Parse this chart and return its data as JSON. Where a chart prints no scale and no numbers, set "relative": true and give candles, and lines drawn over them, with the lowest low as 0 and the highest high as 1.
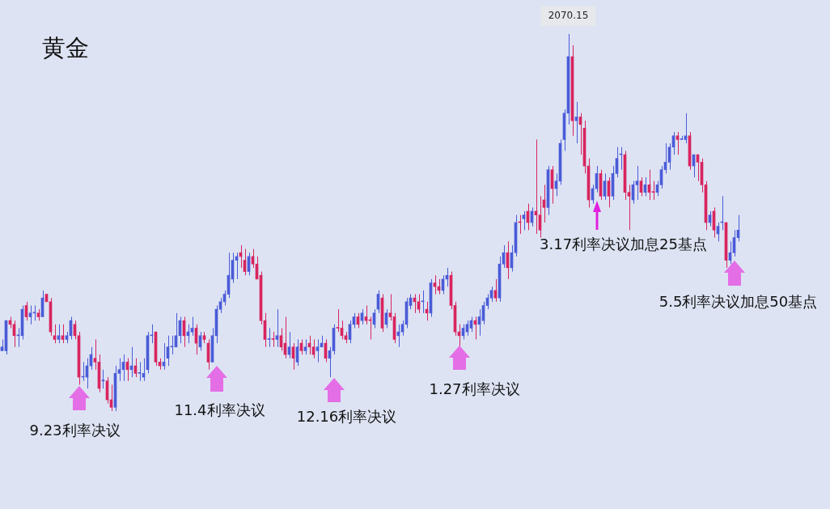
{
  "chart_data": {
    "type": "candlestick",
    "title": "黄金",
    "relative": true,
    "annotations": [
      {
        "text": "2070.15",
        "y": 1
      },
      "9.23利率决议",
      "11.4利率决议",
      "12.16利率决议",
      "1.27利率决议",
      "3.17利率决议加息25基点",
      "5.5利率决议加息50基点"
    ],
    "categories": [
      null,
      null,
      null,
      null,
      null,
      null,
      null,
      null,
      null,
      null,
      null,
      null,
      null,
      null,
      null,
      null,
      null,
      null,
      null,
      null,
      null,
      null,
      null,
      null,
      null,
      null,
      null,
      null,
      null,
      null,
      null,
      null,
      null,
      null,
      null,
      null,
      null,
      null,
      null,
      null,
      null,
      null,
      null,
      null,
      null,
      null,
      null,
      null,
      null,
      null,
      null,
      null,
      null,
      null,
      null,
      null,
      null,
      null,
      null,
      null,
      null,
      null,
      null,
      null,
      null,
      null,
      null,
      null,
      null,
      null,
      null,
      null,
      null,
      null,
      null,
      null,
      null,
      null,
      null,
      null,
      null,
      null,
      null,
      null,
      null,
      null,
      null,
      null,
      null,
      null,
      null,
      null,
      null,
      null,
      null,
      null,
      null,
      null,
      null,
      null,
      null,
      null,
      null,
      null,
      null,
      null,
      null,
      null,
      null,
      null,
      null,
      null,
      null,
      null,
      null,
      null,
      null,
      null,
      null,
      null,
      null,
      null,
      null,
      null,
      null,
      null,
      null,
      null,
      null,
      null,
      null,
      null,
      null,
      null,
      null,
      null,
      null,
      null,
      null,
      null,
      null,
      null,
      null,
      null,
      null,
      null,
      null,
      null,
      null,
      null,
      null,
      null,
      null,
      null,
      null,
      null,
      null,
      null,
      null,
      null,
      null,
      null,
      null,
      null,
      null,
      null,
      null,
      null,
      null,
      null,
      null,
      null,
      null,
      null,
      null,
      null,
      null,
      null,
      null,
      null,
      null,
      null,
      null
    ],
    "ohlc": [
      [
        0.16,
        0.19,
        0.16,
        0.17
      ],
      [
        0.16,
        0.24,
        0.15,
        0.24
      ],
      [
        0.24,
        0.25,
        0.22,
        0.23
      ],
      [
        0.23,
        0.24,
        0.17,
        0.2
      ],
      [
        0.2,
        0.22,
        0.17,
        0.2
      ],
      [
        0.2,
        0.28,
        0.19,
        0.27
      ],
      [
        0.28,
        0.29,
        0.24,
        0.25
      ],
      [
        0.25,
        0.28,
        0.23,
        0.26
      ],
      [
        0.26,
        0.28,
        0.24,
        0.26
      ],
      [
        0.26,
        0.27,
        0.24,
        0.25
      ],
      [
        0.25,
        0.32,
        0.25,
        0.3
      ],
      [
        0.31,
        0.31,
        0.29,
        0.29
      ],
      [
        0.29,
        0.3,
        0.2,
        0.21
      ],
      [
        0.2,
        0.23,
        0.18,
        0.19
      ],
      [
        0.19,
        0.23,
        0.18,
        0.2
      ],
      [
        0.2,
        0.23,
        0.18,
        0.19
      ],
      [
        0.19,
        0.21,
        0.18,
        0.2
      ],
      [
        0.2,
        0.25,
        0.19,
        0.24
      ],
      [
        0.23,
        0.24,
        0.19,
        0.2
      ],
      [
        0.2,
        0.21,
        0.07,
        0.09
      ],
      [
        0.09,
        0.13,
        0.08,
        0.09
      ],
      [
        0.09,
        0.14,
        0.06,
        0.12
      ],
      [
        0.12,
        0.17,
        0.11,
        0.15
      ],
      [
        0.14,
        0.19,
        0.11,
        0.13
      ],
      [
        0.13,
        0.15,
        0.05,
        0.06
      ],
      [
        0.08,
        0.11,
        0.06,
        0.08
      ],
      [
        0.08,
        0.09,
        0.02,
        0.03
      ],
      [
        0.03,
        0.07,
        0,
        0.01
      ],
      [
        0.01,
        0.12,
        0,
        0.1
      ],
      [
        0.1,
        0.14,
        0.08,
        0.11
      ],
      [
        0.11,
        0.15,
        0.08,
        0.13
      ],
      [
        0.13,
        0.14,
        0.08,
        0.11
      ],
      [
        0.11,
        0.17,
        0.09,
        0.12
      ],
      [
        0.12,
        0.14,
        0.09,
        0.1
      ],
      [
        0.1,
        0.13,
        0.08,
        0.1
      ],
      [
        0.09,
        0.14,
        0.08,
        0.1
      ],
      [
        0.11,
        0.21,
        0.1,
        0.2
      ],
      [
        0.2,
        0.23,
        0.18,
        0.2
      ],
      [
        0.21,
        0.21,
        0.12,
        0.13
      ],
      [
        0.13,
        0.14,
        0.11,
        0.12
      ],
      [
        0.12,
        0.18,
        0.11,
        0.13
      ],
      [
        0.14,
        0.2,
        0.12,
        0.17
      ],
      [
        0.17,
        0.2,
        0.15,
        0.17
      ],
      [
        0.17,
        0.26,
        0.17,
        0.2
      ],
      [
        0.2,
        0.25,
        0.18,
        0.24
      ],
      [
        0.24,
        0.25,
        0.17,
        0.2
      ],
      [
        0.2,
        0.23,
        0.18,
        0.21
      ],
      [
        0.21,
        0.25,
        0.2,
        0.22
      ],
      [
        0.22,
        0.23,
        0.15,
        0.18
      ],
      [
        0.17,
        0.21,
        0.16,
        0.2
      ],
      [
        0.2,
        0.21,
        0.18,
        0.19
      ],
      [
        0.18,
        0.19,
        0.11,
        0.13
      ],
      [
        0.13,
        0.22,
        0.13,
        0.2
      ],
      [
        0.2,
        0.28,
        0.18,
        0.27
      ],
      [
        0.27,
        0.3,
        0.26,
        0.29
      ],
      [
        0.29,
        0.32,
        0.28,
        0.31
      ],
      [
        0.31,
        0.42,
        0.3,
        0.36
      ],
      [
        0.35,
        0.42,
        0.34,
        0.4
      ],
      [
        0.4,
        0.42,
        0.35,
        0.41
      ],
      [
        0.42,
        0.44,
        0.38,
        0.41
      ],
      [
        0.4,
        0.43,
        0.36,
        0.37
      ],
      [
        0.37,
        0.42,
        0.36,
        0.41
      ],
      [
        0.41,
        0.43,
        0.38,
        0.39
      ],
      [
        0.39,
        0.41,
        0.35,
        0.35
      ],
      [
        0.36,
        0.37,
        0.23,
        0.24
      ],
      [
        0.24,
        0.26,
        0.17,
        0.19
      ],
      [
        0.19,
        0.22,
        0.17,
        0.19
      ],
      [
        0.19,
        0.21,
        0.17,
        0.19
      ],
      [
        0.19,
        0.27,
        0.17,
        0.2
      ],
      [
        0.2,
        0.22,
        0.16,
        0.17
      ],
      [
        0.18,
        0.25,
        0.14,
        0.15
      ],
      [
        0.15,
        0.21,
        0.14,
        0.17
      ],
      [
        0.17,
        0.18,
        0.11,
        0.14
      ],
      [
        0.13,
        0.19,
        0.12,
        0.17
      ],
      [
        0.18,
        0.19,
        0.15,
        0.16
      ],
      [
        0.16,
        0.19,
        0.15,
        0.17
      ],
      [
        0.18,
        0.2,
        0.15,
        0.17
      ],
      [
        0.17,
        0.19,
        0.14,
        0.15
      ],
      [
        0.16,
        0.19,
        0.13,
        0.17
      ],
      [
        0.17,
        0.2,
        0.17,
        0.18
      ],
      [
        0.18,
        0.19,
        0.13,
        0.14
      ],
      [
        0.14,
        0.17,
        0.09,
        0.16
      ],
      [
        0.16,
        0.23,
        0.15,
        0.22
      ],
      [
        0.22,
        0.27,
        0.21,
        0.22
      ],
      [
        0.22,
        0.24,
        0.19,
        0.2
      ],
      [
        0.2,
        0.21,
        0.18,
        0.19
      ],
      [
        0.19,
        0.24,
        0.18,
        0.23
      ],
      [
        0.23,
        0.26,
        0.22,
        0.25
      ],
      [
        0.25,
        0.26,
        0.22,
        0.23
      ],
      [
        0.24,
        0.27,
        0.23,
        0.26
      ],
      [
        0.25,
        0.28,
        0.23,
        0.24
      ],
      [
        0.24,
        0.25,
        0.19,
        0.24
      ],
      [
        0.23,
        0.27,
        0.22,
        0.26
      ],
      [
        0.27,
        0.32,
        0.26,
        0.31
      ],
      [
        0.3,
        0.31,
        0.21,
        0.22
      ],
      [
        0.23,
        0.27,
        0.22,
        0.26
      ],
      [
        0.26,
        0.31,
        0.24,
        0.25
      ],
      [
        0.25,
        0.26,
        0.18,
        0.19
      ],
      [
        0.2,
        0.23,
        0.17,
        0.21
      ],
      [
        0.21,
        0.24,
        0.2,
        0.23
      ],
      [
        0.23,
        0.3,
        0.22,
        0.29
      ],
      [
        0.28,
        0.31,
        0.27,
        0.3
      ],
      [
        0.3,
        0.31,
        0.26,
        0.29
      ],
      [
        0.29,
        0.31,
        0.26,
        0.27
      ],
      [
        0.29,
        0.32,
        0.26,
        0.29
      ],
      [
        0.27,
        0.29,
        0.24,
        0.26
      ],
      [
        0.26,
        0.35,
        0.25,
        0.34
      ],
      [
        0.34,
        0.36,
        0.31,
        0.33
      ],
      [
        0.33,
        0.35,
        0.31,
        0.32
      ],
      [
        0.32,
        0.36,
        0.31,
        0.35
      ],
      [
        0.35,
        0.38,
        0.33,
        0.36
      ],
      [
        0.36,
        0.37,
        0.27,
        0.28
      ],
      [
        0.28,
        0.29,
        0.2,
        0.21
      ],
      [
        0.21,
        0.23,
        0.17,
        0.2
      ],
      [
        0.2,
        0.23,
        0.19,
        0.22
      ],
      [
        0.21,
        0.24,
        0.2,
        0.23
      ],
      [
        0.22,
        0.25,
        0.21,
        0.24
      ],
      [
        0.24,
        0.25,
        0.19,
        0.23
      ],
      [
        0.23,
        0.27,
        0.2,
        0.25
      ],
      [
        0.24,
        0.29,
        0.23,
        0.28
      ],
      [
        0.28,
        0.31,
        0.27,
        0.3
      ],
      [
        0.3,
        0.33,
        0.29,
        0.32
      ],
      [
        0.32,
        0.35,
        0.29,
        0.3
      ],
      [
        0.3,
        0.41,
        0.29,
        0.39
      ],
      [
        0.39,
        0.44,
        0.38,
        0.42
      ],
      [
        0.42,
        0.45,
        0.35,
        0.38
      ],
      [
        0.38,
        0.44,
        0.37,
        0.42
      ],
      [
        0.42,
        0.52,
        0.41,
        0.5
      ],
      [
        0.5,
        0.52,
        0.47,
        0.5
      ],
      [
        0.51,
        0.53,
        0.48,
        0.52
      ],
      [
        0.53,
        0.55,
        0.48,
        0.5
      ],
      [
        0.5,
        0.54,
        0.49,
        0.53
      ],
      [
        0.53,
        0.72,
        0.47,
        0.52
      ],
      [
        0.52,
        0.57,
        0.46,
        0.48
      ],
      [
        0.56,
        0.6,
        0.5,
        0.54
      ],
      [
        0.54,
        0.65,
        0.52,
        0.64
      ],
      [
        0.64,
        0.65,
        0.55,
        0.59
      ],
      [
        0.59,
        0.63,
        0.57,
        0.61
      ],
      [
        0.61,
        0.72,
        0.6,
        0.71
      ],
      [
        0.72,
        0.8,
        0.69,
        0.79
      ],
      [
        0.79,
        1,
        0.76,
        0.94
      ],
      [
        0.94,
        0.97,
        0.73,
        0.77
      ],
      [
        0.77,
        0.82,
        0.71,
        0.78
      ],
      [
        0.78,
        0.79,
        0.68,
        0.76
      ],
      [
        0.75,
        0.77,
        0.63,
        0.65
      ],
      [
        0.65,
        0.67,
        0.54,
        0.56
      ],
      [
        0.56,
        0.6,
        0.55,
        0.59
      ],
      [
        0.59,
        0.65,
        0.58,
        0.63
      ],
      [
        0.63,
        0.64,
        0.56,
        0.57
      ],
      [
        0.57,
        0.63,
        0.56,
        0.61
      ],
      [
        0.61,
        0.62,
        0.54,
        0.57
      ],
      [
        0.57,
        0.65,
        0.56,
        0.63
      ],
      [
        0.63,
        0.7,
        0.62,
        0.67
      ],
      [
        0.68,
        0.7,
        0.64,
        0.68
      ],
      [
        0.68,
        0.69,
        0.56,
        0.58
      ],
      [
        0.58,
        0.6,
        0.48,
        0.57
      ],
      [
        0.56,
        0.61,
        0.55,
        0.6
      ],
      [
        0.6,
        0.65,
        0.56,
        0.61
      ],
      [
        0.61,
        0.62,
        0.57,
        0.58
      ],
      [
        0.58,
        0.62,
        0.57,
        0.6
      ],
      [
        0.6,
        0.64,
        0.56,
        0.58
      ],
      [
        0.58,
        0.61,
        0.56,
        0.58
      ],
      [
        0.58,
        0.61,
        0.57,
        0.6
      ],
      [
        0.6,
        0.65,
        0.59,
        0.64
      ],
      [
        0.64,
        0.71,
        0.63,
        0.66
      ],
      [
        0.66,
        0.71,
        0.64,
        0.7
      ],
      [
        0.7,
        0.74,
        0.68,
        0.73
      ],
      [
        0.73,
        0.74,
        0.68,
        0.72
      ],
      [
        0.72,
        0.73,
        0.72,
        0.72
      ],
      [
        0.72,
        0.79,
        0.71,
        0.73
      ],
      [
        0.73,
        0.74,
        0.64,
        0.65
      ],
      [
        0.65,
        0.68,
        0.62,
        0.68
      ],
      [
        0.68,
        0.68,
        0.61,
        0.66
      ],
      [
        0.66,
        0.67,
        0.58,
        0.6
      ],
      [
        0.6,
        0.61,
        0.48,
        0.5
      ],
      [
        0.5,
        0.53,
        0.49,
        0.52
      ],
      [
        0.53,
        0.54,
        0.46,
        0.48
      ],
      [
        0.47,
        0.5,
        0.45,
        0.49
      ],
      [
        0.5,
        0.57,
        0.48,
        0.5
      ],
      [
        0.5,
        0.5,
        0.38,
        0.4
      ],
      [
        0.4,
        0.45,
        0.39,
        0.42
      ],
      [
        0.42,
        0.48,
        0.41,
        0.46
      ],
      [
        0.46,
        0.52,
        0.45,
        0.48
      ]
    ],
    "colors": [
      "#4a5bd8",
      "#4a5bd8",
      "#d8245e",
      "#d8245e",
      "#4a5bd8",
      "#4a5bd8",
      "#d8245e",
      "#4a5bd8",
      "#4a5bd8",
      "#d8245e",
      "#4a5bd8",
      "#d8245e",
      "#d8245e",
      "#d8245e",
      "#4a5bd8",
      "#d8245e",
      "#4a5bd8",
      "#4a5bd8",
      "#d8245e",
      "#d8245e",
      "#4a5bd8",
      "#4a5bd8",
      "#4a5bd8",
      "#d8245e",
      "#d8245e",
      "#4a5bd8",
      "#d8245e",
      "#d8245e",
      "#4a5bd8",
      "#4a5bd8",
      "#4a5bd8",
      "#d8245e",
      "#4a5bd8",
      "#d8245e",
      "#4a5bd8",
      "#4a5bd8",
      "#4a5bd8",
      "#4a5bd8",
      "#d8245e",
      "#d8245e",
      "#4a5bd8",
      "#4a5bd8",
      "#4a5bd8",
      "#4a5bd8",
      "#4a5bd8",
      "#d8245e",
      "#4a5bd8",
      "#4a5bd8",
      "#d8245e",
      "#4a5bd8",
      "#d8245e",
      "#d8245e",
      "#4a5bd8",
      "#4a5bd8",
      "#4a5bd8",
      "#4a5bd8",
      "#4a5bd8",
      "#4a5bd8",
      "#4a5bd8",
      "#d8245e",
      "#d8245e",
      "#4a5bd8",
      "#d8245e",
      "#d8245e",
      "#d8245e",
      "#d8245e",
      "#4a5bd8",
      "#d8245e",
      "#4a5bd8",
      "#d8245e",
      "#d8245e",
      "#4a5bd8",
      "#d8245e",
      "#4a5bd8",
      "#d8245e",
      "#4a5bd8",
      "#d8245e",
      "#d8245e",
      "#4a5bd8",
      "#4a5bd8",
      "#d8245e",
      "#4a5bd8",
      "#4a5bd8",
      "#d8245e",
      "#d8245e",
      "#d8245e",
      "#4a5bd8",
      "#4a5bd8",
      "#d8245e",
      "#4a5bd8",
      "#d8245e",
      "#d8245e",
      "#4a5bd8",
      "#4a5bd8",
      "#d8245e",
      "#4a5bd8",
      "#d8245e",
      "#d8245e",
      "#4a5bd8",
      "#4a5bd8",
      "#4a5bd8",
      "#4a5bd8",
      "#d8245e",
      "#d8245e",
      "#4a5bd8",
      "#d8245e",
      "#4a5bd8",
      "#d8245e",
      "#d8245e",
      "#4a5bd8",
      "#4a5bd8",
      "#d8245e",
      "#d8245e",
      "#d8245e",
      "#4a5bd8",
      "#4a5bd8",
      "#4a5bd8",
      "#d8245e",
      "#4a5bd8",
      "#4a5bd8",
      "#4a5bd8",
      "#4a5bd8",
      "#d8245e",
      "#4a5bd8",
      "#4a5bd8",
      "#d8245e",
      "#4a5bd8",
      "#4a5bd8",
      "#d8245e",
      "#4a5bd8",
      "#d8245e",
      "#4a5bd8",
      "#d8245e",
      "#d8245e",
      "#d8245e",
      "#4a5bd8",
      "#d8245e",
      "#4a5bd8",
      "#4a5bd8",
      "#4a5bd8",
      "#4a5bd8",
      "#d8245e",
      "#4a5bd8",
      "#d8245e",
      "#d8245e",
      "#d8245e",
      "#4a5bd8",
      "#4a5bd8",
      "#d8245e",
      "#4a5bd8",
      "#d8245e",
      "#4a5bd8",
      "#4a5bd8",
      "#4a5bd8",
      "#d8245e",
      "#d8245e",
      "#4a5bd8",
      "#4a5bd8",
      "#d8245e",
      "#4a5bd8",
      "#d8245e",
      "#d8245e",
      "#4a5bd8",
      "#4a5bd8",
      "#4a5bd8",
      "#4a5bd8",
      "#4a5bd8",
      "#d8245e",
      "#4a5bd8",
      "#4a5bd8",
      "#d8245e",
      "#4a5bd8",
      "#d8245e",
      "#d8245e",
      "#d8245e",
      "#4a5bd8",
      "#d8245e",
      "#4a5bd8",
      "#4a5bd8",
      "#d8245e",
      "#4a5bd8",
      "#4a5bd8",
      "#4a5bd8"
    ]
  }
}
